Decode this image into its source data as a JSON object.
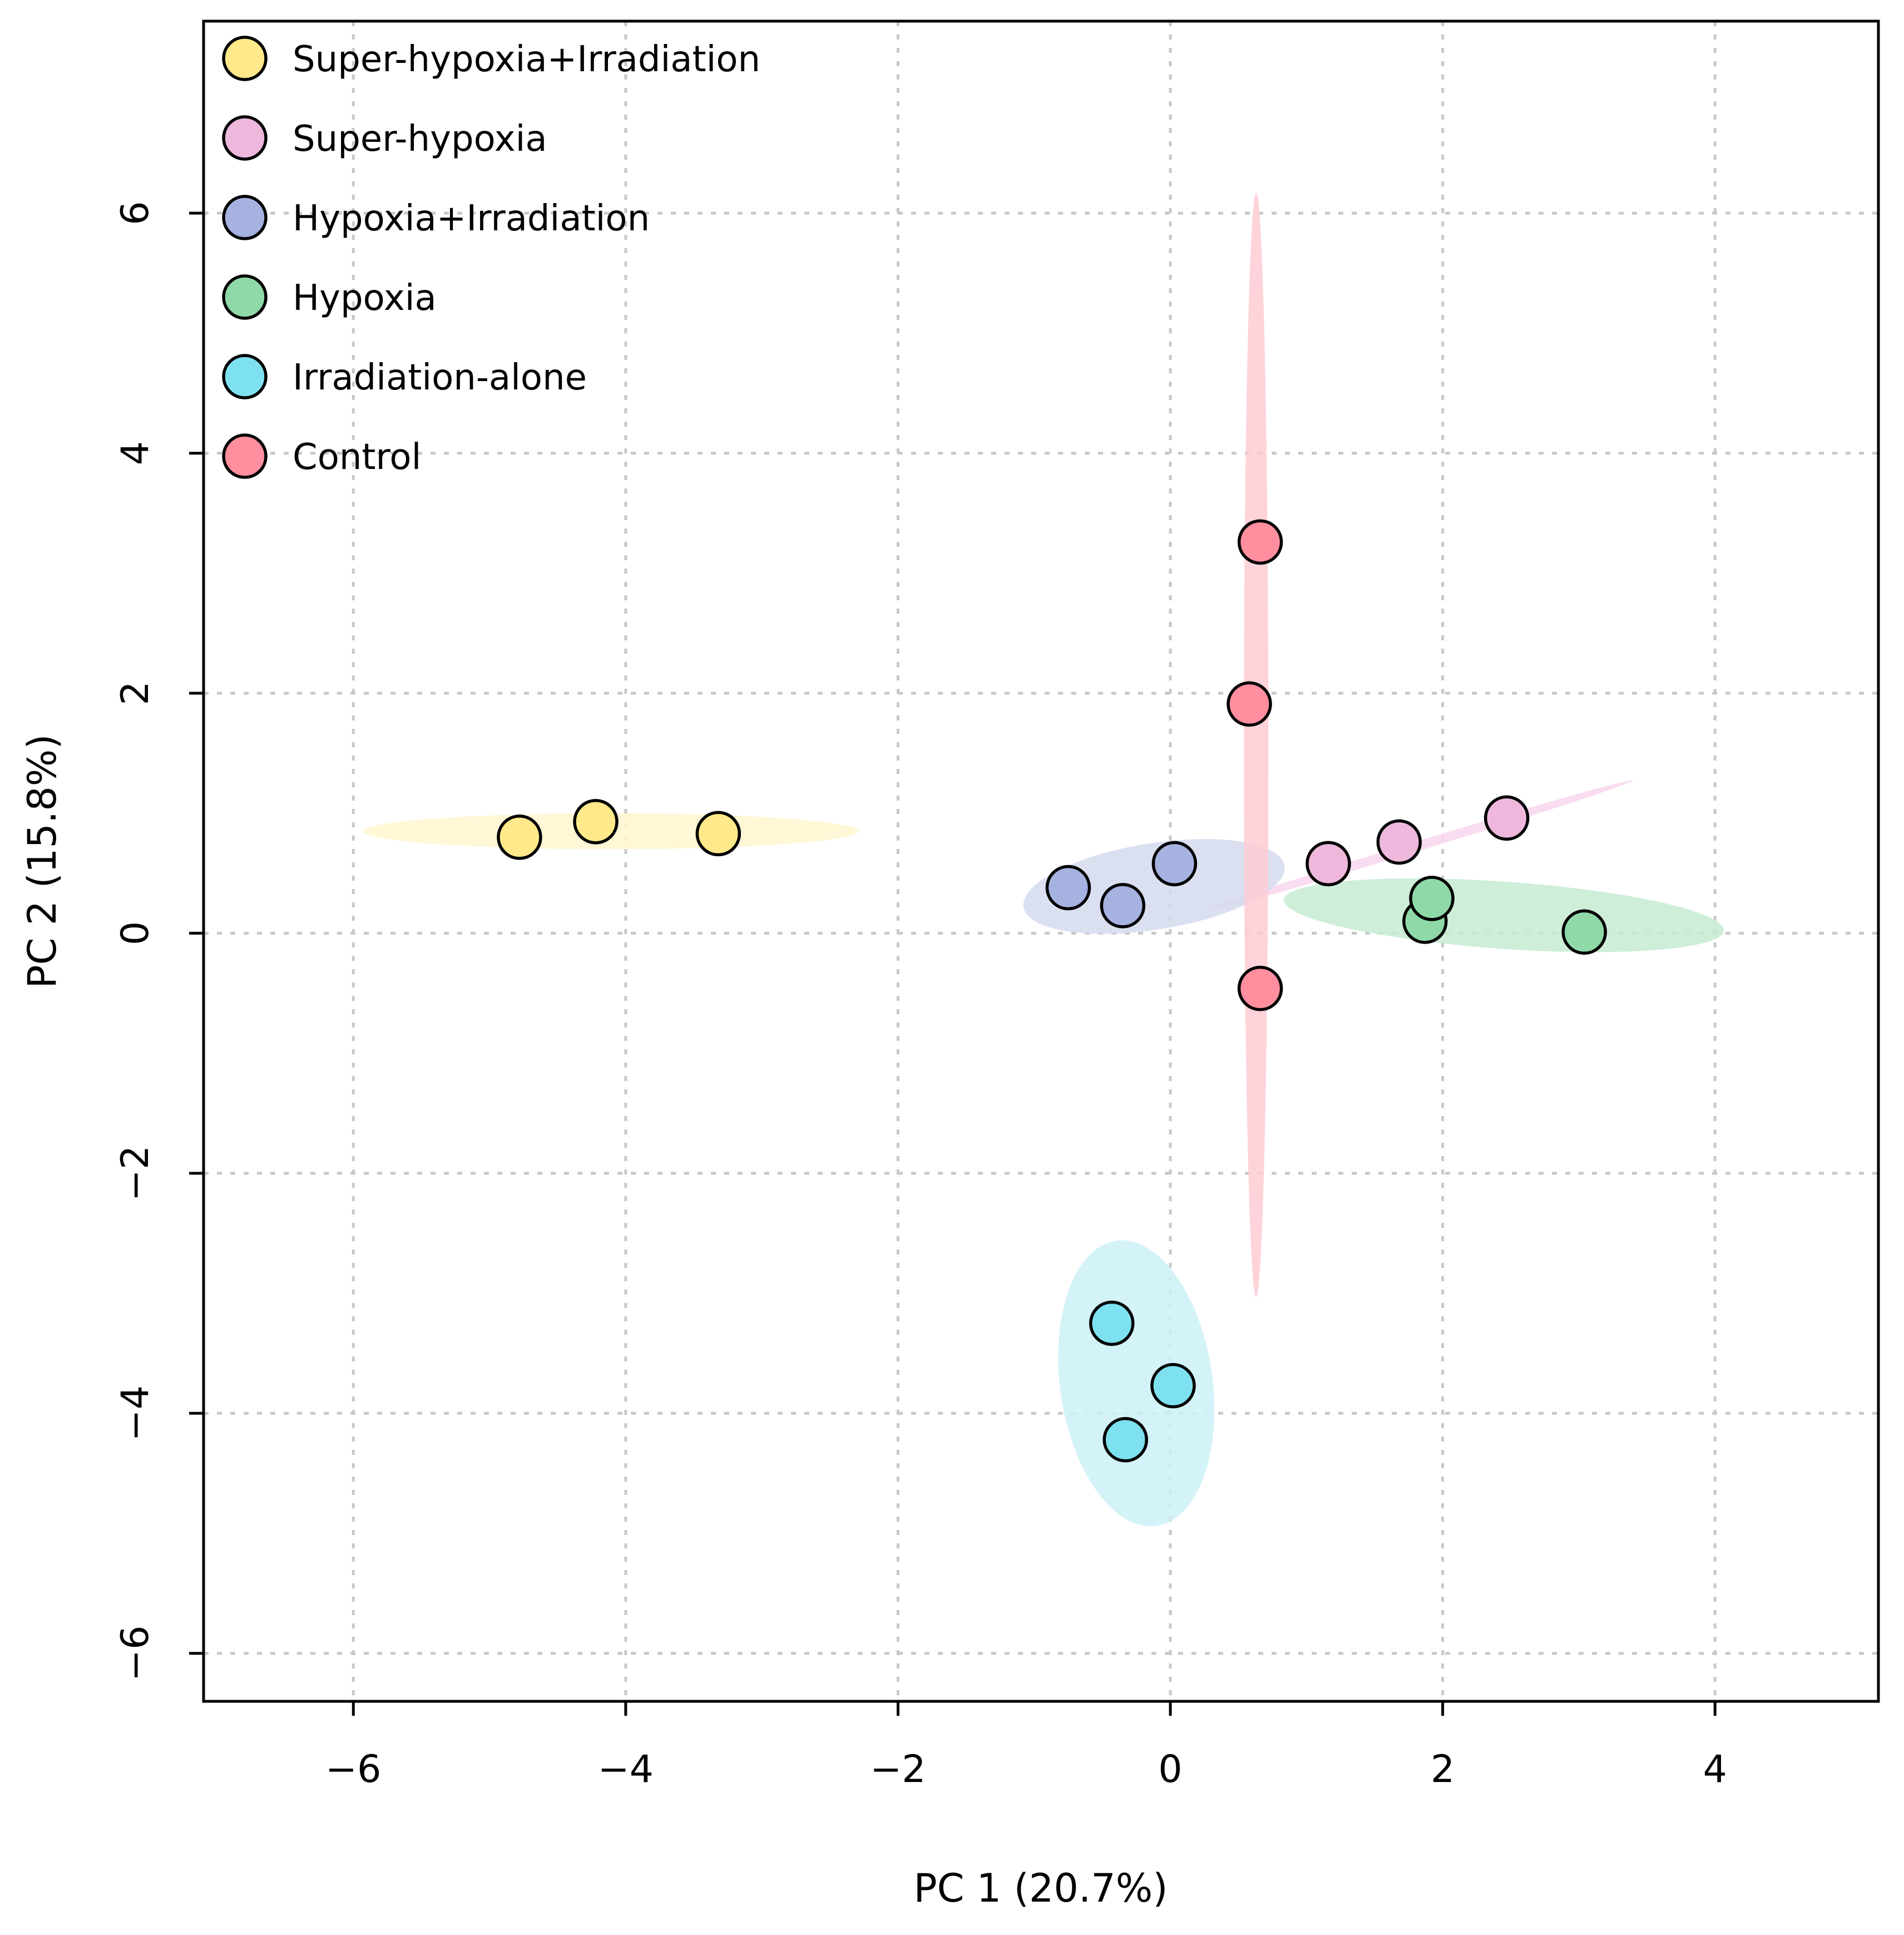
{
  "chart_data": {
    "type": "scatter",
    "title": "",
    "xlabel": "PC 1 (20.7%)",
    "ylabel": "PC 2 (15.8%)",
    "xlim": [
      -7.1,
      5.2
    ],
    "ylim": [
      -6.4,
      7.6
    ],
    "xticks": [
      -6,
      -4,
      -2,
      0,
      2,
      4
    ],
    "yticks": [
      -6,
      -4,
      -2,
      0,
      2,
      4,
      6
    ],
    "xtick_labels": [
      "−6",
      "−4",
      "−2",
      "0",
      "2",
      "4"
    ],
    "ytick_labels": [
      "−6",
      "−4",
      "−2",
      "0",
      "2",
      "4",
      "6"
    ],
    "grid": true,
    "legend_position": "top-left",
    "series": [
      {
        "name": "Super-hypoxia+Irradiation",
        "color": "#FFE98A",
        "ellipse_color": "#FFF6CF",
        "points": [
          [
            -4.78,
            0.8
          ],
          [
            -4.22,
            0.93
          ],
          [
            -3.32,
            0.83
          ]
        ],
        "ellipse": {
          "cx": -4.11,
          "cy": 0.85,
          "rx": 1.82,
          "ry": 0.15,
          "angle": 0
        }
      },
      {
        "name": "Super-hypoxia",
        "color": "#EDB8DC",
        "ellipse_color": "#F8D6EC",
        "points": [
          [
            1.16,
            0.58
          ],
          [
            1.68,
            0.76
          ],
          [
            2.47,
            0.96
          ]
        ],
        "ellipse": {
          "cx": 1.8,
          "cy": 0.72,
          "rx": 1.67,
          "ry": 0.04,
          "angle": 17
        }
      },
      {
        "name": "Hypoxia+Irradiation",
        "color": "#A6B2DF",
        "ellipse_color": "#D5DBEF",
        "points": [
          [
            -0.75,
            0.38
          ],
          [
            -0.35,
            0.23
          ],
          [
            0.03,
            0.58
          ]
        ],
        "ellipse": {
          "cx": -0.12,
          "cy": 0.39,
          "rx": 0.97,
          "ry": 0.36,
          "angle": 9
        }
      },
      {
        "name": "Hypoxia",
        "color": "#8FD9A8",
        "ellipse_color": "#C6EBD2",
        "points": [
          [
            1.87,
            0.1
          ],
          [
            1.92,
            0.29
          ],
          [
            3.04,
            0.01
          ]
        ],
        "ellipse": {
          "cx": 2.45,
          "cy": 0.15,
          "rx": 1.62,
          "ry": 0.28,
          "angle": -4
        }
      },
      {
        "name": "Irradiation-alone",
        "color": "#7EE1F0",
        "ellipse_color": "#CDF1F8",
        "points": [
          [
            -0.43,
            -3.25
          ],
          [
            0.02,
            -3.77
          ],
          [
            -0.33,
            -4.22
          ]
        ],
        "ellipse": {
          "cx": -0.25,
          "cy": -3.75,
          "rx": 0.56,
          "ry": 1.2,
          "angle": 8
        }
      },
      {
        "name": "Control",
        "color": "#FF8E9E",
        "ellipse_color": "#FFCBD4",
        "points": [
          [
            0.66,
            3.26
          ],
          [
            0.58,
            1.91
          ],
          [
            0.66,
            -0.46
          ]
        ],
        "ellipse": {
          "cx": 0.63,
          "cy": 1.57,
          "rx": 0.09,
          "ry": 4.6,
          "angle": 0
        }
      }
    ]
  }
}
